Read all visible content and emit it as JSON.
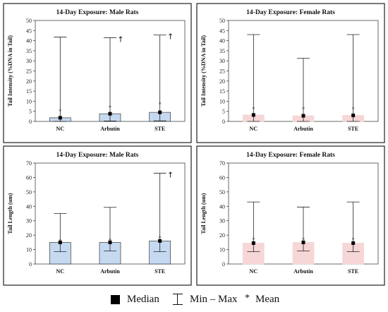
{
  "legend": {
    "median_label": "Median",
    "minmax_label": "Min – Max",
    "mean_label": "Mean",
    "mean_symbol": "*"
  },
  "chart_data": [
    {
      "type": "bar",
      "title": "14-Day Exposure: Male Rats",
      "ylabel": "Tail Intensity (%DNA in Tail)",
      "ylim": [
        0,
        50
      ],
      "yticks": [
        0,
        5,
        10,
        15,
        20,
        25,
        30,
        35,
        40,
        45,
        50
      ],
      "categories": [
        "NC",
        "Arbutin",
        "STE"
      ],
      "bar_color": "#c5d9f1",
      "bar_edge": "#3b3b3b",
      "values": [
        1.8,
        3.8,
        4.5
      ],
      "median": [
        1.8,
        3.8,
        4.5
      ],
      "min": [
        0,
        0.2,
        0.3
      ],
      "max": [
        41.8,
        41.5,
        42.8
      ],
      "mean": [
        5.0,
        7.0,
        8.5
      ],
      "markers": [
        "",
        "↑",
        "↑"
      ]
    },
    {
      "type": "bar",
      "title": "14-Day Exposure: Female Rats",
      "ylabel": "Tail Intensity (%DNA in Tail)",
      "ylim": [
        0,
        50
      ],
      "yticks": [
        0,
        5,
        10,
        15,
        20,
        25,
        30,
        35,
        40,
        45,
        50
      ],
      "categories": [
        "NC",
        "Arbutin",
        "STE"
      ],
      "bar_color": "#f6d6d6",
      "bar_edge": "#f6d6d6",
      "values": [
        3.2,
        2.8,
        3.0
      ],
      "median": [
        3.2,
        2.8,
        3.0
      ],
      "min": [
        0,
        0,
        0
      ],
      "max": [
        43.0,
        31.3,
        43.0
      ],
      "mean": [
        6.2,
        6.2,
        6.2
      ],
      "markers": [
        "",
        "",
        ""
      ]
    },
    {
      "type": "bar",
      "title": "14-Day Exposure: Male Rats",
      "ylabel": "Tail Length (um)",
      "ylim": [
        0,
        70
      ],
      "yticks": [
        0,
        10,
        20,
        30,
        40,
        50,
        60,
        70
      ],
      "categories": [
        "NC",
        "Arbutin",
        "STE"
      ],
      "bar_color": "#c5d9f1",
      "bar_edge": "#3b3b3b",
      "values": [
        15,
        15,
        16
      ],
      "median": [
        15,
        15,
        16
      ],
      "min": [
        8.5,
        9,
        8.5
      ],
      "max": [
        35,
        39.3,
        63
      ],
      "mean": [
        16,
        16.5,
        18
      ],
      "markers": [
        "",
        "",
        "↑"
      ]
    },
    {
      "type": "bar",
      "title": "14-Day Exposure: Female Rats",
      "ylabel": "Tail Length (um)",
      "ylim": [
        0,
        70
      ],
      "yticks": [
        0,
        10,
        20,
        30,
        40,
        50,
        60,
        70
      ],
      "categories": [
        "NC",
        "Arbutin",
        "STE"
      ],
      "bar_color": "#f6d6d6",
      "bar_edge": "#f6d6d6",
      "values": [
        14.5,
        15,
        14.5
      ],
      "median": [
        14.5,
        15,
        14.5
      ],
      "min": [
        8.5,
        9,
        8.5
      ],
      "max": [
        43,
        39.5,
        43
      ],
      "mean": [
        17,
        17,
        17
      ],
      "markers": [
        "",
        "",
        ""
      ]
    }
  ]
}
